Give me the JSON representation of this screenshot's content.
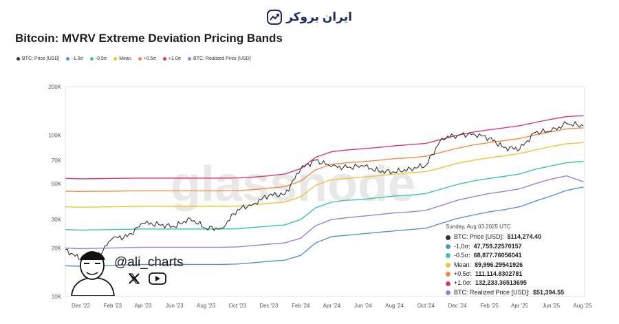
{
  "brand": {
    "name": "ایران بروکر",
    "icon": "chart-arrow-logo-icon",
    "color": "#1d2a5c"
  },
  "chart_data": {
    "type": "line",
    "title": "Bitcoin: MVRV Extreme Deviation Pricing Bands",
    "y_scale": "log",
    "ylim": [
      10000,
      200000
    ],
    "y_ticks": [
      10000,
      20000,
      30000,
      50000,
      70000,
      100000,
      200000
    ],
    "y_tick_labels": [
      "10K",
      "20K",
      "30K",
      "50K",
      "70K",
      "100K",
      "200K"
    ],
    "x_ticks": [
      "2022-12-01",
      "2023-02-01",
      "2023-04-01",
      "2023-06-01",
      "2023-08-01",
      "2023-10-01",
      "2023-12-01",
      "2024-02-01",
      "2024-04-01",
      "2024-06-01",
      "2024-08-01",
      "2024-10-01",
      "2024-12-01",
      "2025-02-01",
      "2025-04-01",
      "2025-06-01",
      "2025-08-01"
    ],
    "x_tick_labels": [
      "Dec '22",
      "Feb '23",
      "Apr '23",
      "Jun '23",
      "Aug '23",
      "Oct '23",
      "Dec '23",
      "Feb '24",
      "Apr '24",
      "Jun '24",
      "Aug '24",
      "Oct '24",
      "Dec '24",
      "Feb '25",
      "Apr '25",
      "Jun '25",
      "Aug '25"
    ],
    "xlim": [
      "2022-11-01",
      "2025-08-05"
    ],
    "x": [
      "2022-11-01",
      "2022-12-01",
      "2023-01-01",
      "2023-02-01",
      "2023-03-01",
      "2023-04-01",
      "2023-05-01",
      "2023-06-01",
      "2023-07-01",
      "2023-08-01",
      "2023-09-01",
      "2023-10-01",
      "2023-11-01",
      "2023-12-01",
      "2024-01-01",
      "2024-02-01",
      "2024-03-01",
      "2024-04-01",
      "2024-05-01",
      "2024-06-01",
      "2024-07-01",
      "2024-08-01",
      "2024-09-01",
      "2024-10-01",
      "2024-11-01",
      "2024-12-01",
      "2025-01-01",
      "2025-02-01",
      "2025-03-01",
      "2025-04-01",
      "2025-05-01",
      "2025-06-01",
      "2025-07-01",
      "2025-08-03"
    ],
    "series": [
      {
        "name": "BTC: Price [USD]",
        "color": "#333333",
        "values": [
          19500,
          17000,
          17500,
          23000,
          23500,
          28500,
          28000,
          27000,
          30500,
          26500,
          26500,
          34500,
          37500,
          42500,
          43000,
          62000,
          70000,
          64000,
          63000,
          64500,
          60000,
          59000,
          62000,
          65000,
          96000,
          100000,
          102000,
          96000,
          84000,
          82000,
          104000,
          106000,
          118000,
          114274.4
        ]
      },
      {
        "name": "-1.0σ",
        "color": "#5b8fd6",
        "values": [
          15500,
          15400,
          15500,
          15600,
          15700,
          15800,
          15800,
          15800,
          15800,
          15800,
          15800,
          15900,
          16200,
          16500,
          16800,
          18000,
          21500,
          23500,
          24000,
          24500,
          25000,
          25500,
          26000,
          26500,
          28500,
          30500,
          32000,
          33500,
          34500,
          36000,
          39000,
          42000,
          45500,
          47759.23
        ]
      },
      {
        "name": "-0.5σ",
        "color": "#3cc4a8",
        "values": [
          26000,
          25800,
          25900,
          26000,
          26100,
          26200,
          26200,
          26200,
          26200,
          26200,
          26200,
          26300,
          26800,
          27300,
          27800,
          30000,
          35500,
          38500,
          39500,
          40000,
          41000,
          42000,
          42500,
          43500,
          46500,
          49500,
          52000,
          54000,
          55500,
          57500,
          61500,
          64500,
          67500,
          68877.76
        ]
      },
      {
        "name": "Mean",
        "color": "#f0c23b",
        "values": [
          36000,
          35800,
          35900,
          36000,
          36100,
          36200,
          36200,
          36200,
          36200,
          36200,
          36200,
          36300,
          37000,
          37800,
          38500,
          41500,
          49000,
          53000,
          54000,
          55000,
          56000,
          57500,
          58500,
          59500,
          63000,
          67000,
          70000,
          72500,
          74500,
          77000,
          81000,
          85000,
          88500,
          89996.3
        ]
      },
      {
        "name": "+0.5σ",
        "color": "#f08a45",
        "values": [
          45000,
          44800,
          44900,
          45000,
          45100,
          45200,
          45200,
          45200,
          45200,
          45200,
          45200,
          45300,
          46000,
          47000,
          48000,
          52000,
          61000,
          66000,
          67500,
          68500,
          70000,
          71500,
          72500,
          74000,
          78500,
          83000,
          87000,
          90000,
          92500,
          95500,
          100500,
          105000,
          109500,
          111114.83
        ]
      },
      {
        "name": "+1.0σ",
        "color": "#d63b66",
        "values": [
          54000,
          53700,
          53800,
          54000,
          54100,
          54200,
          54200,
          54200,
          54200,
          54200,
          54200,
          54300,
          55000,
          56000,
          57500,
          62000,
          73000,
          79000,
          81000,
          82500,
          84000,
          86000,
          87500,
          89000,
          94500,
          100000,
          104500,
          108000,
          111000,
          114500,
          120000,
          125500,
          130500,
          132233.37
        ]
      },
      {
        "name": "BTC: Realized Price [USD]",
        "color": "#9a7fe0",
        "values": [
          20000,
          19800,
          19900,
          20000,
          20100,
          20200,
          20200,
          20200,
          20200,
          20200,
          20200,
          20300,
          20700,
          21100,
          21500,
          23000,
          27500,
          30000,
          30800,
          31500,
          32200,
          33000,
          33500,
          34200,
          36800,
          39500,
          41500,
          43500,
          44800,
          46500,
          50000,
          53500,
          56000,
          51394.55
        ]
      }
    ],
    "watermark": "glassnode",
    "legend_position": "top-left",
    "grid": false,
    "tooltip": {
      "date": "Sunday, Aug 03 2025 UTC",
      "rows": [
        {
          "label": "BTC: Price [USD]: ",
          "value": "$114,274.40",
          "color": "#333333"
        },
        {
          "label": "-1.0σ: ",
          "value": "47,759.22570157",
          "color": "#5b8fd6"
        },
        {
          "label": "-0.5σ: ",
          "value": "68,877.76056041",
          "color": "#3cc4a8"
        },
        {
          "label": "Mean: ",
          "value": "89,996.29541926",
          "color": "#f0c23b"
        },
        {
          "label": "+0.5σ: ",
          "value": "111,114.8302781",
          "color": "#f08a45"
        },
        {
          "label": "+1.0σ: ",
          "value": "132,233.36513695",
          "color": "#d63b66"
        },
        {
          "label": "BTC: Realized Price [USD]: ",
          "value": "$51,394.55",
          "color": "#9a7fe0"
        }
      ]
    }
  },
  "legend": [
    {
      "label": "BTC: Price [USD]",
      "color": "#333333"
    },
    {
      "label": "-1.0σ",
      "color": "#5b8fd6"
    },
    {
      "label": "-0.5σ",
      "color": "#3cc4a8"
    },
    {
      "label": "Mean",
      "color": "#f0c23b"
    },
    {
      "label": "+0.5σ",
      "color": "#f08a45"
    },
    {
      "label": "+1.0σ",
      "color": "#d63b66"
    },
    {
      "label": "BTC: Realized Price [USD]",
      "color": "#9a7fe0"
    }
  ],
  "author": {
    "handle": "@ali_charts",
    "avatar": "cartoon-portrait-avatar",
    "social_icons": [
      "x-logo-icon",
      "youtube-icon"
    ]
  }
}
